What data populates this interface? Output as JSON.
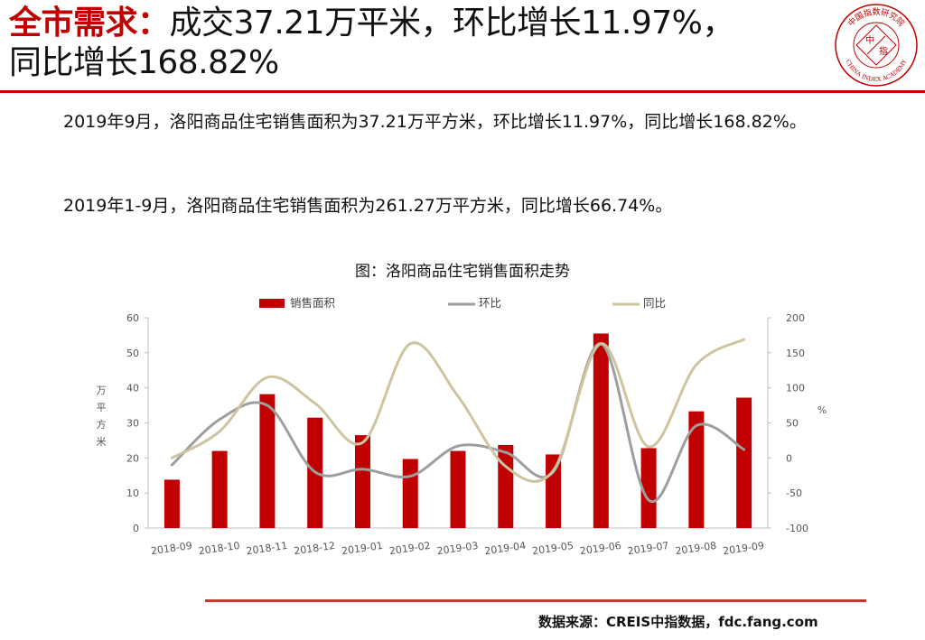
{
  "header": {
    "title_key": "全市需求：",
    "title_rest_line1": "成交37.21万平米，环比增长11.97%，",
    "title_line2": "同比增长168.82%",
    "logo_text_top": "中国指数研究院",
    "logo_text_bottom": "CHINA INDEX ACADEMY",
    "logo_center_left": "中",
    "logo_center_right": "指"
  },
  "body": {
    "paragraph1": "2019年9月，洛阳商品住宅销售面积为37.21万平方米，环比增长11.97%，同比增长168.82%。",
    "paragraph2": "2019年1-9月，洛阳商品住宅销售面积为261.27万平方米，同比增长66.74%。"
  },
  "chart_title": "图：洛阳商品住宅销售面积走势",
  "chart_data": {
    "type": "bar",
    "categories": [
      "2018-09",
      "2018-10",
      "2018-11",
      "2018-12",
      "2019-01",
      "2019-02",
      "2019-03",
      "2019-04",
      "2019-05",
      "2019-06",
      "2019-07",
      "2019-08",
      "2019-09"
    ],
    "series": [
      {
        "name": "销售面积",
        "type": "bar",
        "axis": "left",
        "color": "#c00000",
        "values": [
          13.8,
          22.0,
          38.2,
          31.5,
          26.5,
          19.7,
          22.0,
          23.7,
          21.0,
          55.5,
          22.8,
          33.3,
          37.2
        ]
      },
      {
        "name": "环比",
        "type": "line",
        "axis": "right",
        "color": "#9e9e9e",
        "values": [
          -10,
          55,
          75,
          -20,
          -16,
          -26,
          17,
          8,
          -20,
          163,
          -60,
          46,
          12
        ]
      },
      {
        "name": "同比",
        "type": "line",
        "axis": "right",
        "color": "#cdc5a0",
        "values": [
          0,
          38,
          115,
          78,
          22,
          163,
          88,
          -12,
          -18,
          163,
          16,
          133,
          169
        ]
      }
    ],
    "ylabel": "万平方米",
    "y2label": "%",
    "ylim": [
      0,
      60
    ],
    "yticks": [
      "0",
      "10",
      "20",
      "30",
      "40",
      "50",
      "60"
    ],
    "y2lim": [
      -100,
      200
    ],
    "y2ticks": [
      "-100",
      "-50",
      "0",
      "50",
      "100",
      "150",
      "200"
    ],
    "grid": false,
    "legend_position": "top"
  },
  "footer": {
    "source": "数据来源：CREIS中指数据，fdc.fang.com"
  },
  "colors": {
    "accent": "#c00000",
    "bar": "#c00000",
    "mom_line": "#9e9e9e",
    "yoy_line": "#cdc5a0",
    "footer_rule": "#c0392b"
  }
}
